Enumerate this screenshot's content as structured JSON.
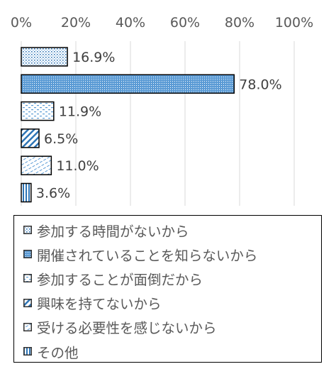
{
  "chart_data": {
    "type": "bar",
    "orientation": "horizontal",
    "categories": [
      "参加する時間がないから",
      "開催されていることを知らないから",
      "参加することが面倒だから",
      "興味を持てないから",
      "受ける必要性を感じないから",
      "その他"
    ],
    "values": [
      16.9,
      78.0,
      11.9,
      6.5,
      11.0,
      3.6
    ],
    "data_labels": [
      "16.9%",
      "78.0%",
      "11.9%",
      "6.5%",
      "11.0%",
      "3.6%"
    ],
    "xlim": [
      0,
      100
    ],
    "ticks": [
      "0%",
      "20%",
      "40%",
      "60%",
      "80%",
      "100%"
    ],
    "tick_values": [
      0,
      20,
      40,
      60,
      80,
      100
    ],
    "axis_position": "top",
    "grid": true,
    "legend_position": "bottom",
    "patterns": [
      "dots",
      "dense-dots-blue",
      "dashes",
      "diagonal-stripes",
      "wavy-dashes",
      "vertical-stripes"
    ],
    "colors": {
      "accent": "#5b9bd5",
      "outline": "#000000",
      "grid": "#d9d9d9"
    }
  }
}
